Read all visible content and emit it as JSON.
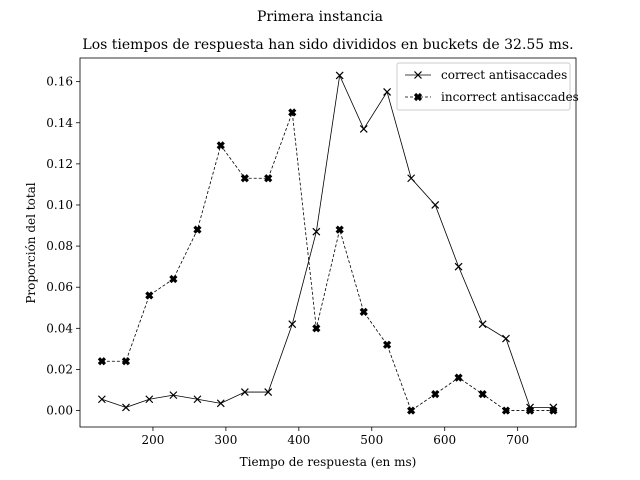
{
  "chart_data": {
    "type": "line",
    "suptitle": "Primera instancia",
    "title": "Los tiempos de respuesta han sido divididos en buckets de 32.55 ms.",
    "xlabel": "Tiempo de respuesta (en ms)",
    "ylabel": "Proporción del total",
    "xlim": [
      100,
      780
    ],
    "ylim": [
      -0.008,
      0.1715
    ],
    "xticks": [
      200,
      300,
      400,
      500,
      600,
      700
    ],
    "xtick_labels": [
      "200",
      "300",
      "400",
      "500",
      "600",
      "700"
    ],
    "yticks": [
      0.0,
      0.02,
      0.04,
      0.06,
      0.08,
      0.1,
      0.12,
      0.14,
      0.16
    ],
    "ytick_labels": [
      "0.00",
      "0.02",
      "0.04",
      "0.06",
      "0.08",
      "0.10",
      "0.12",
      "0.14",
      "0.16"
    ],
    "grid": false,
    "legend_position": "top-right",
    "x": [
      130,
      163,
      195,
      228,
      261,
      293,
      326,
      358,
      391,
      424,
      456,
      489,
      521,
      554,
      587,
      619,
      652,
      684,
      717,
      749
    ],
    "series": [
      {
        "name": "correct antisaccades",
        "marker": "x",
        "linestyle": "solid",
        "color": "#000000",
        "values": [
          0.0055,
          0.0015,
          0.0055,
          0.0075,
          0.0055,
          0.0035,
          0.009,
          0.009,
          0.042,
          0.087,
          0.163,
          0.137,
          0.155,
          0.113,
          0.1,
          0.07,
          0.042,
          0.035,
          0.0015,
          0.0015
        ]
      },
      {
        "name": "incorrect antisaccades",
        "marker": "X",
        "linestyle": "dashed",
        "color": "#000000",
        "values": [
          0.024,
          0.024,
          0.056,
          0.064,
          0.088,
          0.129,
          0.113,
          0.113,
          0.145,
          0.04,
          0.088,
          0.048,
          0.032,
          0.0,
          0.008,
          0.016,
          0.008,
          0.0,
          0.0,
          0.0
        ]
      }
    ]
  }
}
